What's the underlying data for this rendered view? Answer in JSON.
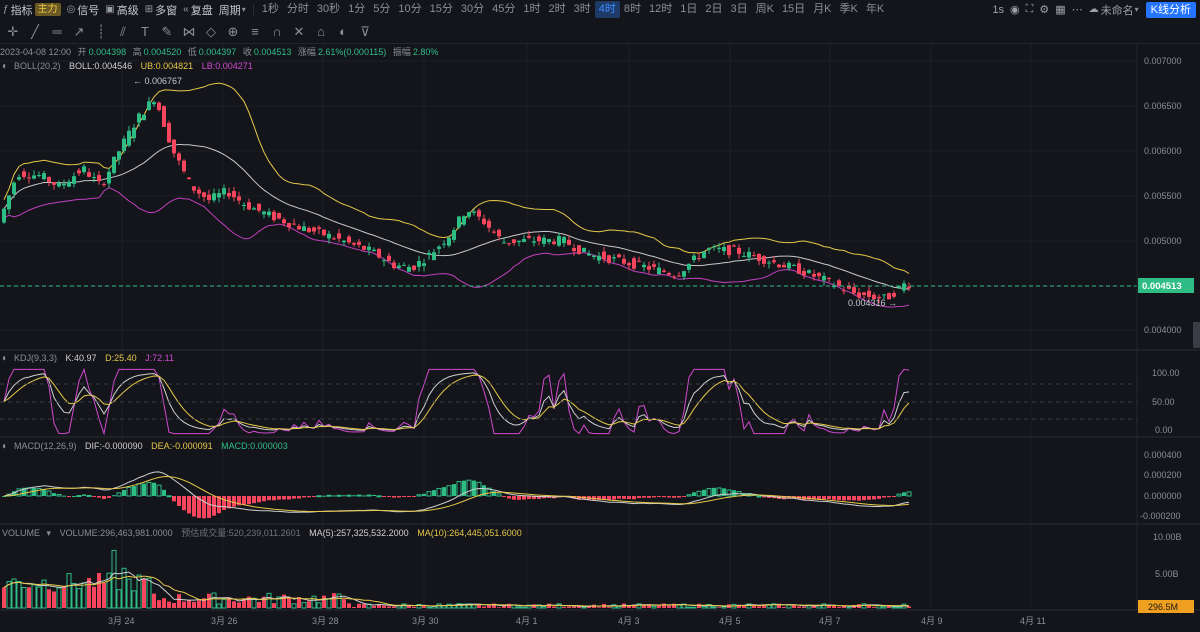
{
  "toolbar": {
    "indicators_label": "指标",
    "main_tag": "主力",
    "signal_label": "信号",
    "advanced_label": "高级",
    "multi_window_label": "多窗",
    "replay_label": "复盘",
    "period_label": "周期",
    "periods": [
      "1秒",
      "分时",
      "30秒",
      "1分",
      "5分",
      "10分",
      "15分",
      "30分",
      "45分",
      "1时",
      "2时",
      "3时",
      "4时",
      "8时",
      "12时",
      "1日",
      "2日",
      "3日",
      "周K",
      "15日",
      "月K",
      "季K",
      "年K"
    ],
    "active_period": "4时",
    "interval_display": "1s",
    "layout_name": "未命名",
    "kline_analysis_button": "K线分析"
  },
  "ohlc_header": {
    "datetime": "2023-04-08 12:00",
    "open_label": "开",
    "open": "0.004398",
    "high_label": "高",
    "high": "0.004520",
    "low_label": "低",
    "low": "0.004397",
    "close_label": "收",
    "close": "0.004513",
    "change_label": "涨幅",
    "change": "2.61%(0.000115)",
    "amplitude_label": "振幅",
    "amplitude": "2.80%"
  },
  "boll": {
    "name": "BOLL(20,2)",
    "boll": "BOLL:0.004546",
    "ub": "UB:0.004821",
    "lb": "LB:0.004271"
  },
  "kdj": {
    "name": "KDJ(9,3,3)",
    "k": "K:40.97",
    "d": "D:25.40",
    "j": "J:72.11"
  },
  "macd": {
    "name": "MACD(12,26,9)",
    "dif": "DIF:-0.000090",
    "dea": "DEA:-0.000091",
    "macd": "MACD:0.000003"
  },
  "volume": {
    "name": "VOLUME",
    "volume": "VOLUME:296,463,981.0000",
    "forecast": "预估成交量:520,239,011.2601",
    "ma5": "MA(5):257,325,532.2000",
    "ma10": "MA(10):264,445,051.6000",
    "current_tag": "296.5M"
  },
  "price_axis": [
    "0.007000",
    "0.006500",
    "0.006000",
    "0.005500",
    "0.005000",
    "0.004000"
  ],
  "current_price": "0.004513",
  "high_marker": "← 0.006767",
  "low_marker": "0.004316 →",
  "kdj_axis": [
    "100.00",
    "50.00",
    "0.00"
  ],
  "macd_axis": [
    "0.000400",
    "0.000200",
    "0.000000",
    "-0.000200"
  ],
  "volume_axis": [
    "10.00B",
    "5.00B"
  ],
  "time_axis": [
    "3月 24",
    "3月 26",
    "3月 28",
    "3月 30",
    "4月 1",
    "4月 3",
    "4月 5",
    "4月 7",
    "4月 9",
    "4月 11"
  ],
  "colors": {
    "up": "#2ebd85",
    "down": "#f6465d",
    "boll_mid": "#c8c8c8",
    "boll_ub": "#e6c84a",
    "boll_lb": "#c040c0",
    "accent": "#2474ff"
  },
  "chart_data": [
    {
      "type": "candlestick",
      "title": "",
      "x": [
        "3月 24",
        "3月 26",
        "3月 28",
        "3月 30",
        "4月 1",
        "4月 3",
        "4月 5",
        "4月 7"
      ],
      "series": [
        {
          "name": "BOLL",
          "values": [
            0.00575,
            0.00588,
            0.00564,
            0.00538,
            0.00517,
            0.00503,
            0.00495,
            0.00476
          ]
        },
        {
          "name": "UB",
          "values": [
            0.00625,
            0.0066,
            0.0065,
            0.0054,
            0.00534,
            0.0051,
            0.00488,
            0.00486
          ]
        },
        {
          "name": "LB",
          "values": [
            0.0045,
            0.00508,
            0.00493,
            0.0047,
            0.005,
            0.00475,
            0.0047,
            0.0045
          ]
        }
      ],
      "ylim": [
        0.0038,
        0.0071
      ],
      "last_close": 0.004513,
      "high": 0.006767,
      "low": 0.004316
    },
    {
      "type": "line",
      "title": "KDJ(9,3,3)",
      "series": [
        {
          "name": "K",
          "values": [
            40.97
          ]
        },
        {
          "name": "D",
          "values": [
            25.4
          ]
        },
        {
          "name": "J",
          "values": [
            72.11
          ]
        }
      ],
      "ylim": [
        -10,
        110
      ]
    },
    {
      "type": "bar",
      "title": "MACD(12,26,9)",
      "series": [
        {
          "name": "DIF",
          "values": [
            -9e-05
          ]
        },
        {
          "name": "DEA",
          "values": [
            -9.1e-05
          ]
        },
        {
          "name": "MACD",
          "values": [
            3e-06
          ]
        }
      ],
      "ylim": [
        -0.00028,
        0.00048
      ]
    },
    {
      "type": "bar",
      "title": "VOLUME",
      "series": [
        {
          "name": "VOLUME",
          "values": [
            296463981
          ]
        },
        {
          "name": "MA(5)",
          "values": [
            257325532.2
          ]
        },
        {
          "name": "MA(10)",
          "values": [
            264445051.6
          ]
        }
      ],
      "ylim": [
        0,
        11000000000
      ]
    }
  ]
}
